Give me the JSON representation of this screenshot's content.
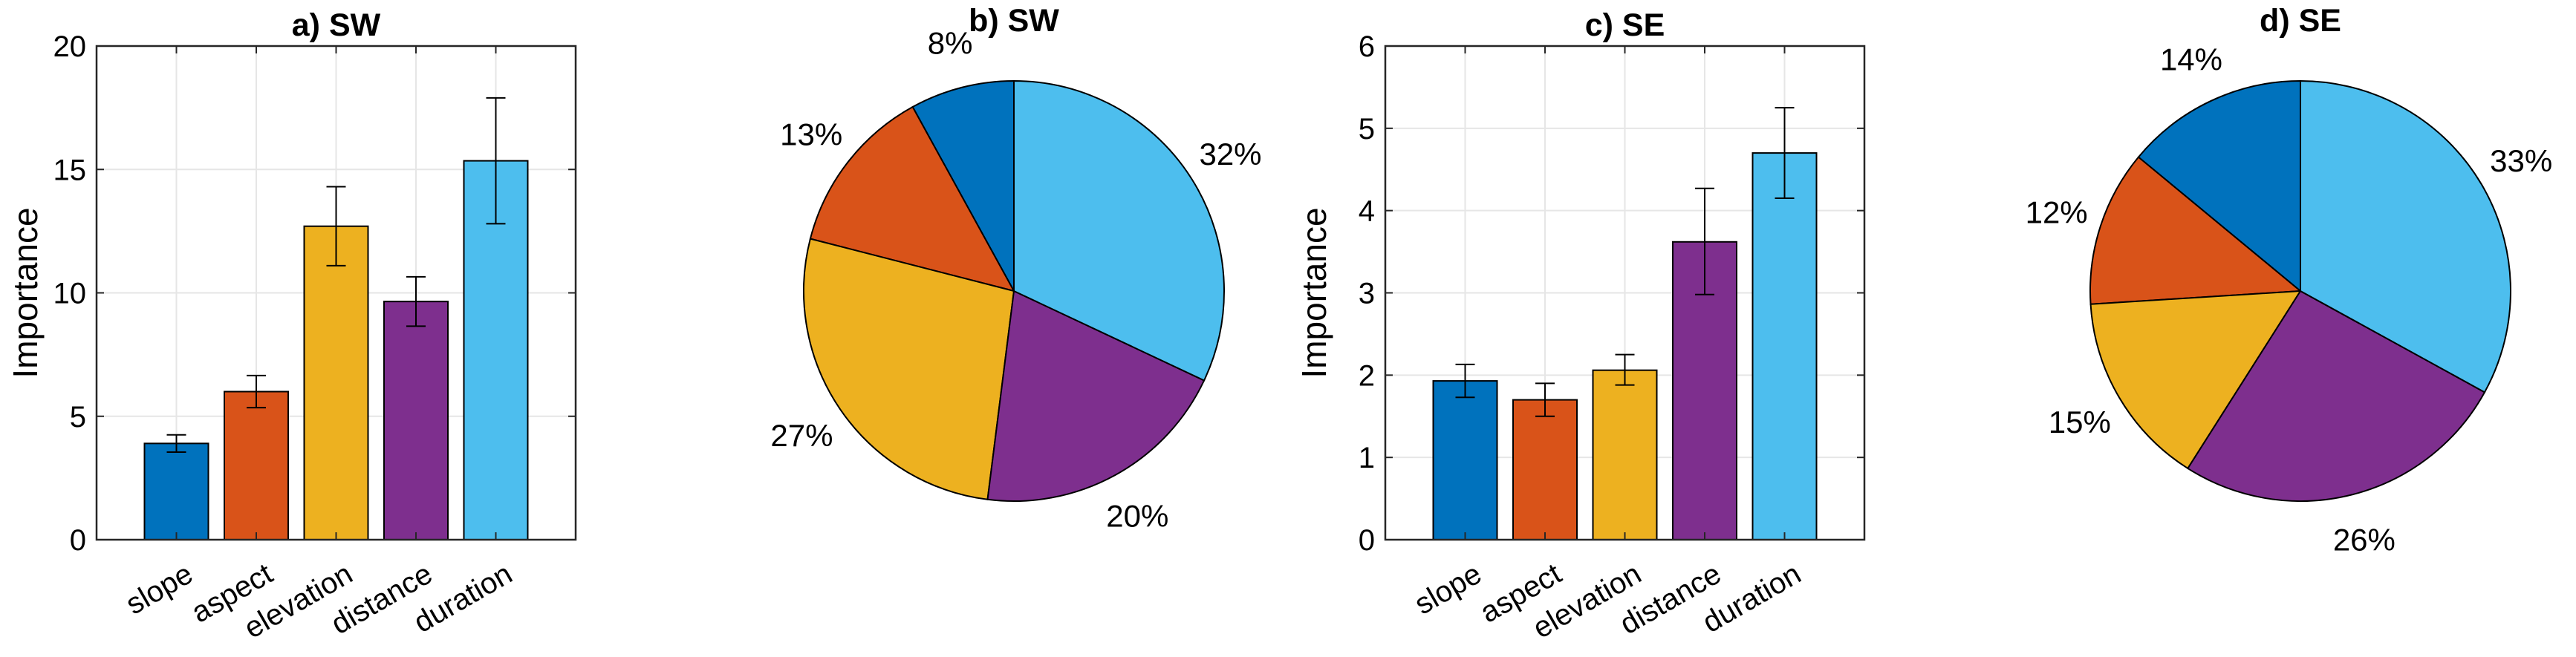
{
  "colors": {
    "slope": "#0072BD",
    "aspect": "#D95319",
    "elevation": "#EDB120",
    "distance": "#7E2F8E",
    "duration": "#4DBEEE",
    "grid": "#e6e6e6",
    "axis": "#262626"
  },
  "chart_data": [
    {
      "type": "bar",
      "title": "a) SW",
      "xlabel": "",
      "ylabel": "Importance",
      "ylim": [
        0,
        20
      ],
      "yticks": [
        0,
        5,
        10,
        15,
        20
      ],
      "ytick_labels": [
        "0",
        "5",
        "10",
        "15",
        "20"
      ],
      "grid": true,
      "categories": [
        "slope",
        "aspect",
        "elevation",
        "distance",
        "duration"
      ],
      "values": [
        3.9,
        6.0,
        12.7,
        9.65,
        15.35
      ],
      "error_low": [
        3.55,
        5.35,
        11.1,
        8.65,
        12.8
      ],
      "error_high": [
        4.25,
        6.65,
        14.3,
        10.65,
        17.9
      ]
    },
    {
      "type": "pie",
      "title": "b) SW",
      "labels": [
        "slope",
        "aspect",
        "elevation",
        "distance",
        "duration"
      ],
      "values": [
        8,
        13,
        27,
        20,
        32
      ],
      "label_texts": [
        "8%",
        "13%",
        "27%",
        "20%",
        "32%"
      ]
    },
    {
      "type": "bar",
      "title": "c) SE",
      "xlabel": "",
      "ylabel": "Importance",
      "ylim": [
        0,
        6
      ],
      "yticks": [
        0,
        1,
        2,
        3,
        4,
        5,
        6
      ],
      "ytick_labels": [
        "0",
        "1",
        "2",
        "3",
        "4",
        "5",
        "6"
      ],
      "grid": true,
      "categories": [
        "slope",
        "aspect",
        "elevation",
        "distance",
        "duration"
      ],
      "values": [
        1.93,
        1.7,
        2.06,
        3.62,
        4.7
      ],
      "error_low": [
        1.73,
        1.5,
        1.88,
        2.98,
        4.15
      ],
      "error_high": [
        2.13,
        1.9,
        2.25,
        4.27,
        5.25
      ]
    },
    {
      "type": "pie",
      "title": "d) SE",
      "labels": [
        "slope",
        "aspect",
        "elevation",
        "distance",
        "duration"
      ],
      "values": [
        14,
        12,
        15,
        26,
        33
      ],
      "label_texts": [
        "14%",
        "12%",
        "15%",
        "26%",
        "33%"
      ]
    }
  ]
}
